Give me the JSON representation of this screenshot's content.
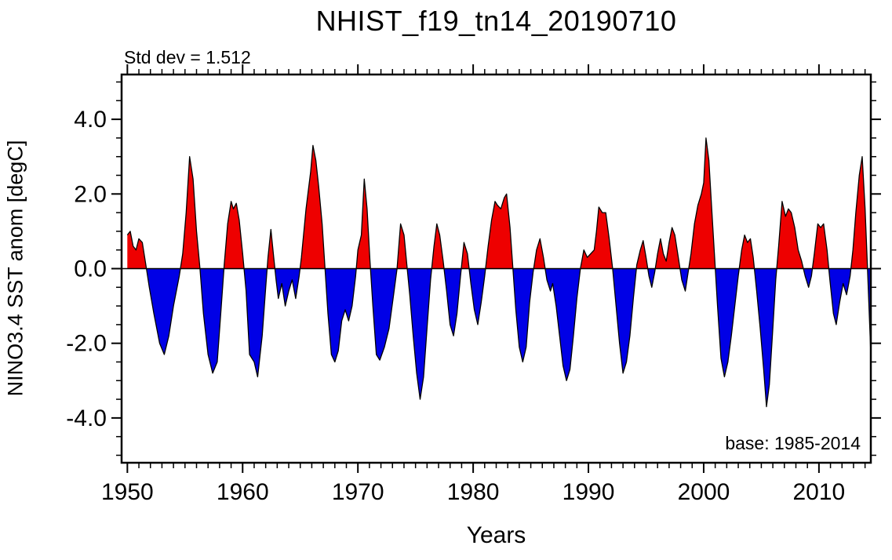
{
  "annotations": {
    "std_dev": "Std dev = 1.512",
    "base": "base: 1985-2014"
  },
  "colors": {
    "positive_fill": "#ee0000",
    "negative_fill": "#0000e6",
    "line": "#000000",
    "background": "#ffffff"
  },
  "chart_data": {
    "type": "area",
    "title": "NHIST_f19_tn14_20190710",
    "xlabel": "Years",
    "ylabel": "NINO3.4 SST anom [degC]",
    "xlim": [
      1949.5,
      2014.5
    ],
    "ylim": [
      -5.2,
      5.2
    ],
    "x_ticks": [
      1950,
      1960,
      1970,
      1980,
      1990,
      2000,
      2010
    ],
    "x_tick_labels": [
      "1950",
      "1960",
      "1970",
      "1980",
      "1990",
      "2000",
      "2010"
    ],
    "x_minor_step": 1,
    "y_ticks": [
      -4,
      -2,
      0,
      2,
      4
    ],
    "y_tick_labels": [
      "-4.0",
      "-2.0",
      "0.0",
      "2.0",
      "4.0"
    ],
    "y_minor_step": 0.5,
    "grid": false,
    "legend": "none",
    "std_dev": 1.512,
    "base_period": "1985-2014",
    "series": [
      {
        "name": "NINO3.4 SST anomaly",
        "points": [
          [
            1950.0,
            0.9
          ],
          [
            1950.25,
            1.0
          ],
          [
            1950.5,
            0.6
          ],
          [
            1950.75,
            0.5
          ],
          [
            1951.0,
            0.8
          ],
          [
            1951.3,
            0.7
          ],
          [
            1951.6,
            0.1
          ],
          [
            1951.9,
            -0.5
          ],
          [
            1952.3,
            -1.2
          ],
          [
            1952.8,
            -2.0
          ],
          [
            1953.2,
            -2.3
          ],
          [
            1953.6,
            -1.8
          ],
          [
            1954.0,
            -1.0
          ],
          [
            1954.5,
            -0.2
          ],
          [
            1954.8,
            0.4
          ],
          [
            1955.1,
            1.5
          ],
          [
            1955.4,
            3.0
          ],
          [
            1955.7,
            2.4
          ],
          [
            1956.0,
            1.0
          ],
          [
            1956.3,
            0.0
          ],
          [
            1956.6,
            -1.2
          ],
          [
            1957.0,
            -2.3
          ],
          [
            1957.4,
            -2.8
          ],
          [
            1957.8,
            -2.5
          ],
          [
            1958.1,
            -1.2
          ],
          [
            1958.4,
            0.1
          ],
          [
            1958.7,
            1.2
          ],
          [
            1959.0,
            1.8
          ],
          [
            1959.2,
            1.6
          ],
          [
            1959.45,
            1.75
          ],
          [
            1959.7,
            1.3
          ],
          [
            1960.0,
            0.4
          ],
          [
            1960.3,
            -0.6
          ],
          [
            1960.6,
            -2.3
          ],
          [
            1961.0,
            -2.5
          ],
          [
            1961.3,
            -2.9
          ],
          [
            1961.7,
            -1.8
          ],
          [
            1962.0,
            -0.5
          ],
          [
            1962.2,
            0.3
          ],
          [
            1962.45,
            1.05
          ],
          [
            1962.7,
            0.3
          ],
          [
            1962.9,
            -0.3
          ],
          [
            1963.1,
            -0.8
          ],
          [
            1963.4,
            -0.4
          ],
          [
            1963.7,
            -1.0
          ],
          [
            1964.0,
            -0.6
          ],
          [
            1964.3,
            -0.3
          ],
          [
            1964.6,
            -0.8
          ],
          [
            1964.9,
            -0.2
          ],
          [
            1965.1,
            0.3
          ],
          [
            1965.5,
            1.6
          ],
          [
            1965.9,
            2.6
          ],
          [
            1966.1,
            3.3
          ],
          [
            1966.35,
            2.9
          ],
          [
            1966.6,
            2.2
          ],
          [
            1966.9,
            1.2
          ],
          [
            1967.15,
            0.0
          ],
          [
            1967.4,
            -1.2
          ],
          [
            1967.7,
            -2.3
          ],
          [
            1968.0,
            -2.5
          ],
          [
            1968.3,
            -2.2
          ],
          [
            1968.6,
            -1.4
          ],
          [
            1968.9,
            -1.1
          ],
          [
            1969.2,
            -1.4
          ],
          [
            1969.5,
            -1.0
          ],
          [
            1969.8,
            -0.2
          ],
          [
            1970.0,
            0.5
          ],
          [
            1970.3,
            0.9
          ],
          [
            1970.55,
            2.4
          ],
          [
            1970.8,
            1.6
          ],
          [
            1971.05,
            0.2
          ],
          [
            1971.3,
            -1.0
          ],
          [
            1971.6,
            -2.3
          ],
          [
            1971.9,
            -2.45
          ],
          [
            1972.3,
            -2.1
          ],
          [
            1972.7,
            -1.6
          ],
          [
            1973.1,
            -0.7
          ],
          [
            1973.4,
            0.0
          ],
          [
            1973.7,
            1.2
          ],
          [
            1974.0,
            0.9
          ],
          [
            1974.25,
            0.1
          ],
          [
            1974.5,
            -0.7
          ],
          [
            1974.8,
            -1.8
          ],
          [
            1975.1,
            -2.8
          ],
          [
            1975.4,
            -3.5
          ],
          [
            1975.7,
            -2.9
          ],
          [
            1976.0,
            -1.6
          ],
          [
            1976.3,
            -0.3
          ],
          [
            1976.6,
            0.6
          ],
          [
            1976.85,
            1.2
          ],
          [
            1977.1,
            0.9
          ],
          [
            1977.4,
            0.2
          ],
          [
            1977.7,
            -0.6
          ],
          [
            1978.0,
            -1.5
          ],
          [
            1978.3,
            -1.8
          ],
          [
            1978.6,
            -1.2
          ],
          [
            1978.9,
            -0.2
          ],
          [
            1979.2,
            0.7
          ],
          [
            1979.5,
            0.4
          ],
          [
            1979.8,
            -0.4
          ],
          [
            1980.1,
            -1.1
          ],
          [
            1980.4,
            -1.5
          ],
          [
            1980.7,
            -0.9
          ],
          [
            1981.0,
            -0.2
          ],
          [
            1981.3,
            0.6
          ],
          [
            1981.6,
            1.3
          ],
          [
            1981.9,
            1.8
          ],
          [
            1982.1,
            1.7
          ],
          [
            1982.4,
            1.6
          ],
          [
            1982.7,
            1.9
          ],
          [
            1982.9,
            2.0
          ],
          [
            1983.2,
            1.1
          ],
          [
            1983.45,
            0.0
          ],
          [
            1983.7,
            -1.1
          ],
          [
            1984.0,
            -2.1
          ],
          [
            1984.3,
            -2.5
          ],
          [
            1984.6,
            -2.1
          ],
          [
            1984.9,
            -0.9
          ],
          [
            1985.2,
            -0.1
          ],
          [
            1985.5,
            0.5
          ],
          [
            1985.8,
            0.8
          ],
          [
            1986.1,
            0.3
          ],
          [
            1986.4,
            -0.3
          ],
          [
            1986.7,
            -0.6
          ],
          [
            1986.9,
            -0.4
          ],
          [
            1987.2,
            -1.0
          ],
          [
            1987.5,
            -1.8
          ],
          [
            1987.8,
            -2.6
          ],
          [
            1988.1,
            -3.0
          ],
          [
            1988.4,
            -2.7
          ],
          [
            1988.7,
            -1.8
          ],
          [
            1989.0,
            -0.8
          ],
          [
            1989.3,
            0.0
          ],
          [
            1989.6,
            0.5
          ],
          [
            1989.9,
            0.3
          ],
          [
            1990.2,
            0.4
          ],
          [
            1990.5,
            0.5
          ],
          [
            1990.7,
            1.0
          ],
          [
            1990.9,
            1.65
          ],
          [
            1991.2,
            1.5
          ],
          [
            1991.5,
            1.5
          ],
          [
            1991.8,
            0.8
          ],
          [
            1992.1,
            0.0
          ],
          [
            1992.4,
            -1.0
          ],
          [
            1992.7,
            -2.0
          ],
          [
            1993.0,
            -2.8
          ],
          [
            1993.3,
            -2.5
          ],
          [
            1993.6,
            -1.8
          ],
          [
            1993.9,
            -0.8
          ],
          [
            1994.2,
            0.1
          ],
          [
            1994.5,
            0.5
          ],
          [
            1994.75,
            0.75
          ],
          [
            1995.0,
            0.3
          ],
          [
            1995.25,
            -0.2
          ],
          [
            1995.5,
            -0.5
          ],
          [
            1995.75,
            -0.1
          ],
          [
            1996.0,
            0.4
          ],
          [
            1996.25,
            0.8
          ],
          [
            1996.5,
            0.4
          ],
          [
            1996.75,
            0.2
          ],
          [
            1997.0,
            0.7
          ],
          [
            1997.25,
            1.1
          ],
          [
            1997.5,
            0.9
          ],
          [
            1997.8,
            0.3
          ],
          [
            1998.1,
            -0.3
          ],
          [
            1998.4,
            -0.6
          ],
          [
            1998.6,
            -0.2
          ],
          [
            1998.9,
            0.4
          ],
          [
            1999.2,
            1.2
          ],
          [
            1999.5,
            1.7
          ],
          [
            1999.8,
            2.0
          ],
          [
            2000.0,
            2.3
          ],
          [
            2000.2,
            3.5
          ],
          [
            2000.45,
            2.9
          ],
          [
            2000.7,
            1.6
          ],
          [
            2000.95,
            0.3
          ],
          [
            2001.2,
            -1.0
          ],
          [
            2001.5,
            -2.4
          ],
          [
            2001.8,
            -2.9
          ],
          [
            2002.1,
            -2.5
          ],
          [
            2002.4,
            -1.8
          ],
          [
            2002.7,
            -1.0
          ],
          [
            2003.0,
            -0.2
          ],
          [
            2003.3,
            0.5
          ],
          [
            2003.55,
            0.9
          ],
          [
            2003.8,
            0.7
          ],
          [
            2004.05,
            0.8
          ],
          [
            2004.3,
            0.3
          ],
          [
            2004.6,
            -0.6
          ],
          [
            2004.9,
            -1.6
          ],
          [
            2005.2,
            -2.7
          ],
          [
            2005.45,
            -3.7
          ],
          [
            2005.7,
            -3.1
          ],
          [
            2006.0,
            -1.6
          ],
          [
            2006.25,
            -0.3
          ],
          [
            2006.5,
            0.6
          ],
          [
            2006.8,
            1.8
          ],
          [
            2007.1,
            1.4
          ],
          [
            2007.35,
            1.6
          ],
          [
            2007.6,
            1.5
          ],
          [
            2007.9,
            1.1
          ],
          [
            2008.2,
            0.5
          ],
          [
            2008.5,
            0.2
          ],
          [
            2008.8,
            -0.2
          ],
          [
            2009.1,
            -0.5
          ],
          [
            2009.35,
            -0.2
          ],
          [
            2009.6,
            0.4
          ],
          [
            2009.9,
            1.2
          ],
          [
            2010.15,
            1.1
          ],
          [
            2010.4,
            1.2
          ],
          [
            2010.7,
            0.5
          ],
          [
            2010.95,
            -0.3
          ],
          [
            2011.25,
            -1.2
          ],
          [
            2011.5,
            -1.5
          ],
          [
            2011.8,
            -0.9
          ],
          [
            2012.1,
            -0.4
          ],
          [
            2012.4,
            -0.7
          ],
          [
            2012.7,
            -0.2
          ],
          [
            2012.95,
            0.5
          ],
          [
            2013.2,
            1.5
          ],
          [
            2013.5,
            2.5
          ],
          [
            2013.75,
            3.0
          ],
          [
            2014.0,
            1.6
          ],
          [
            2014.2,
            0.1
          ],
          [
            2014.5,
            -2.3
          ]
        ]
      }
    ]
  }
}
